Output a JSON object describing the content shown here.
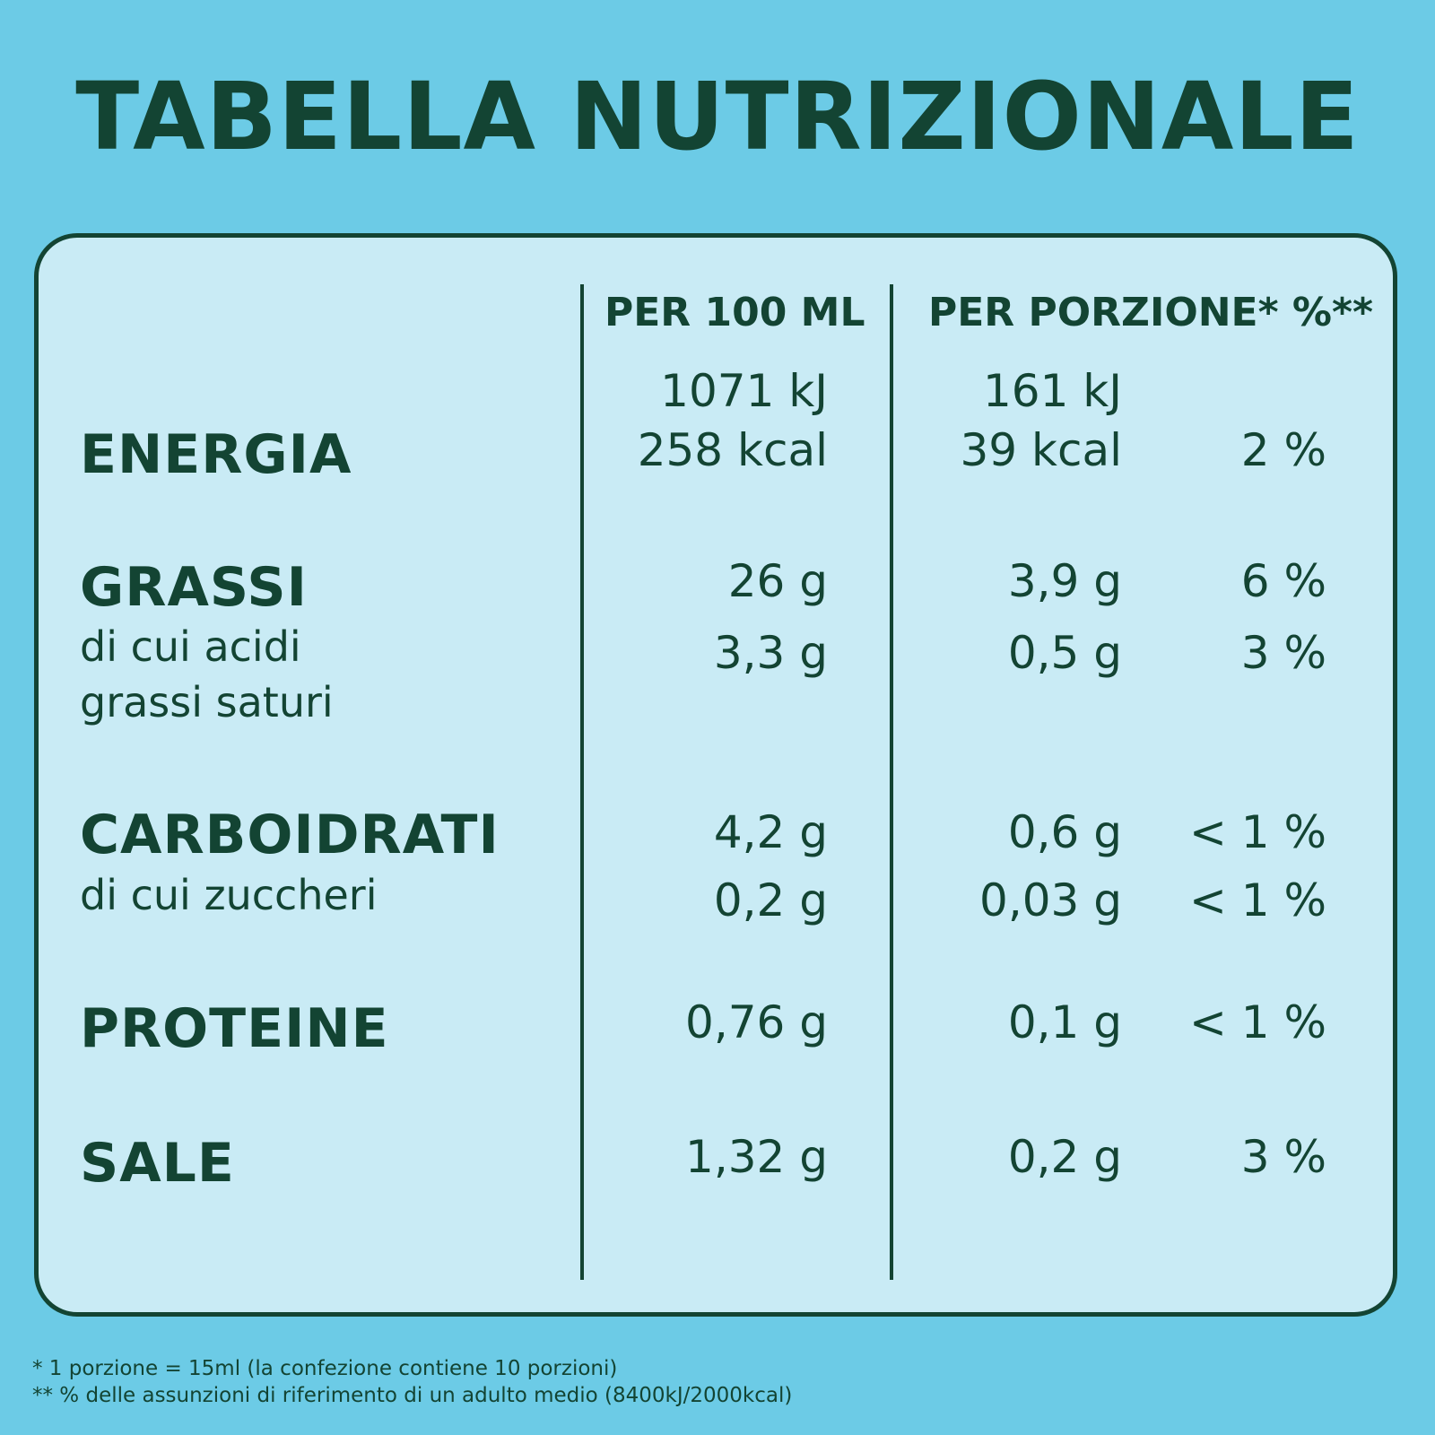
{
  "title": "TABELLA NUTRIZIONALE",
  "columns": {
    "per_100": "PER 100 ML",
    "per_portion": "PER PORZIONE* %**"
  },
  "rows": {
    "energia": {
      "label": "ENERGIA",
      "per100_kj": "1071 kJ",
      "per100_kcal": "258 kcal",
      "portion_kj": "161 kJ",
      "portion_kcal": "39 kcal",
      "pct": "2 %"
    },
    "grassi": {
      "label": "GRASSI",
      "per100": "26 g",
      "portion": "3,9 g",
      "pct": "6 %"
    },
    "saturi": {
      "label_line1": "di cui acidi",
      "label_line2": "grassi saturi",
      "per100": "3,3 g",
      "portion": "0,5 g",
      "pct": "3 %"
    },
    "carboidrati": {
      "label": "CARBOIDRATI",
      "per100": "4,2 g",
      "portion": "0,6 g",
      "pct": "< 1 %"
    },
    "zuccheri": {
      "label": "di cui zuccheri",
      "per100": "0,2 g",
      "portion": "0,03 g",
      "pct": "< 1 %"
    },
    "proteine": {
      "label": "PROTEINE",
      "per100": "0,76 g",
      "portion": "0,1 g",
      "pct": "< 1 %"
    },
    "sale": {
      "label": "SALE",
      "per100": "1,32 g",
      "portion": "0,2 g",
      "pct": "3 %"
    }
  },
  "footnotes": {
    "note1": "* 1 porzione = 15ml (la confezione contiene 10 porzioni)",
    "note2": "** % delle assunzioni di riferimento di un adulto medio (8400kJ/2000kcal)"
  },
  "colors": {
    "background": "#6ccbe6",
    "panel": "#c9ebf5",
    "text": "#134433"
  }
}
